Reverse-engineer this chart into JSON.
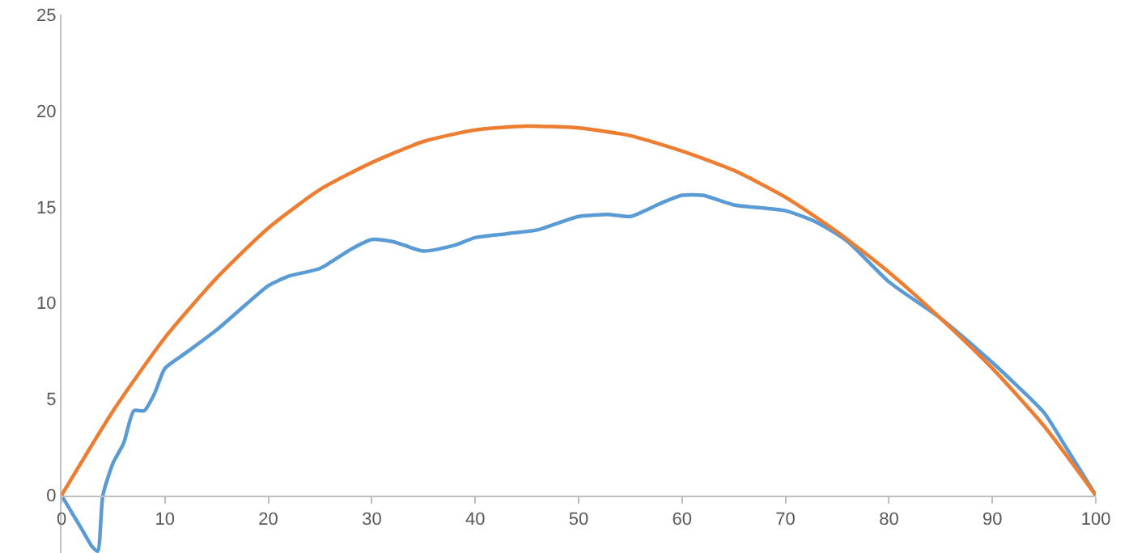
{
  "chart_data": {
    "type": "line",
    "xlim": [
      0,
      100
    ],
    "ylim": [
      -3,
      25
    ],
    "xticks": [
      0,
      10,
      20,
      30,
      40,
      50,
      60,
      70,
      80,
      90,
      100
    ],
    "yticks": [
      0,
      5,
      10,
      15,
      20,
      25
    ],
    "grid": false,
    "marker": "none",
    "line_style": "solid",
    "series": [
      {
        "color": "#5b9bd5",
        "x": [
          0,
          1,
          2,
          3,
          3.5,
          4,
          5,
          6,
          7,
          8,
          9,
          10,
          12,
          15,
          18,
          20,
          22,
          25,
          28,
          30,
          32,
          35,
          38,
          40,
          43,
          46,
          50,
          53,
          55,
          58,
          60,
          62,
          65,
          70,
          73,
          76,
          80,
          85,
          90,
          92,
          95,
          97,
          100
        ],
        "values": [
          0,
          -0.9,
          -1.8,
          -2.7,
          -2.9,
          0,
          1.7,
          2.7,
          4.4,
          4.4,
          5.3,
          6.6,
          7.4,
          8.6,
          10.0,
          10.9,
          11.4,
          11.8,
          12.8,
          13.3,
          13.2,
          12.7,
          13.0,
          13.4,
          13.6,
          13.8,
          14.5,
          14.6,
          14.5,
          15.2,
          15.6,
          15.6,
          15.1,
          14.8,
          14.2,
          13.2,
          11.1,
          9.2,
          6.9,
          5.9,
          4.3,
          2.6,
          0
        ]
      },
      {
        "color": "#ed7d31",
        "x": [
          0,
          5,
          10,
          15,
          20,
          25,
          30,
          35,
          40,
          45,
          50,
          55,
          60,
          65,
          70,
          75,
          80,
          85,
          90,
          95,
          100
        ],
        "values": [
          0,
          4.4,
          8.2,
          11.3,
          13.9,
          15.9,
          17.3,
          18.4,
          19.0,
          19.2,
          19.1,
          18.7,
          17.9,
          16.9,
          15.5,
          13.7,
          11.6,
          9.2,
          6.6,
          3.6,
          0
        ]
      }
    ]
  }
}
